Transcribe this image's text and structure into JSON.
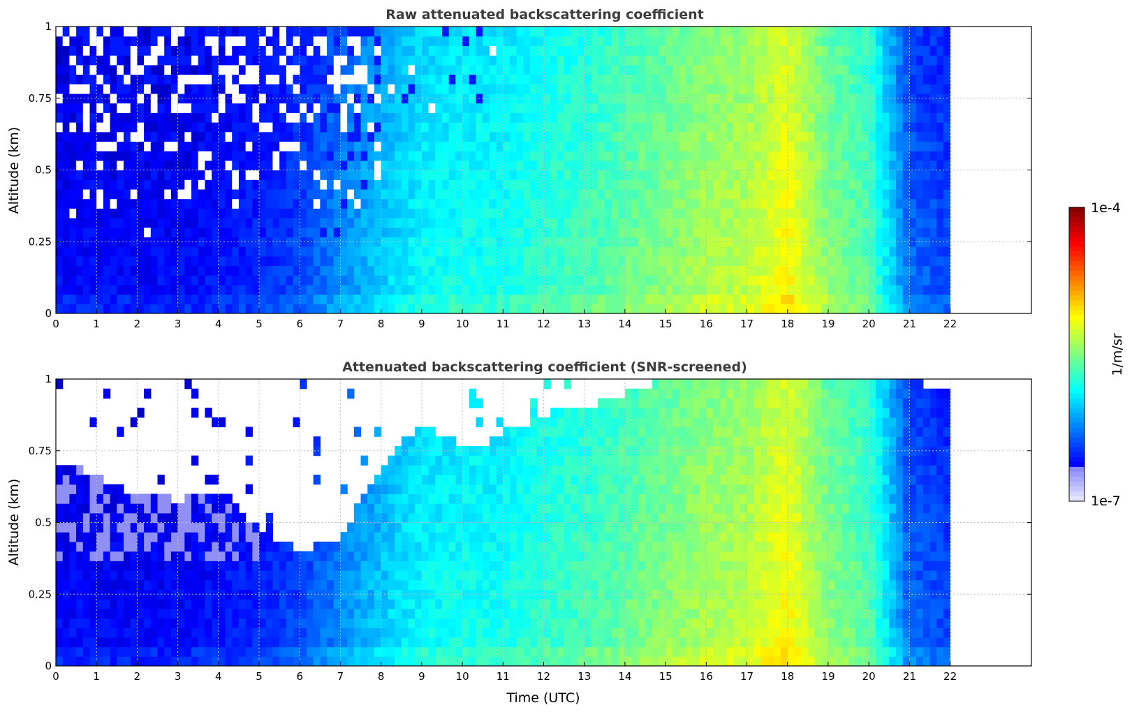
{
  "colors": {
    "jet_low": "#0000ff",
    "jet_high": "#800000",
    "title_color": "#3c3c3c",
    "grid_color": "#bdbdbd"
  },
  "chart_data": [
    {
      "type": "heatmap",
      "title": "Raw attenuated backscattering coefficient",
      "xlabel": "",
      "ylabel": "Altitude (km)",
      "xlim": [
        0,
        24
      ],
      "ylim": [
        0,
        1
      ],
      "x_ticks": [
        "0",
        "1",
        "2",
        "3",
        "4",
        "5",
        "6",
        "7",
        "8",
        "9",
        "10",
        "11",
        "12",
        "13",
        "14",
        "15",
        "16",
        "17",
        "18",
        "19",
        "20",
        "21",
        "22"
      ],
      "y_ticks": [
        "0",
        "0.25",
        "0.5",
        "0.75",
        "1"
      ],
      "grid": true,
      "data_extent_x": [
        0,
        22
      ],
      "time_profile_hours": [
        0,
        1,
        2,
        3,
        4,
        5,
        6,
        7,
        8,
        9,
        10,
        11,
        12,
        13,
        14,
        15,
        16,
        17,
        18,
        19,
        20,
        21,
        22
      ],
      "log10_backscatter_estimate": [
        -6.6,
        -6.6,
        -6.6,
        -6.6,
        -6.55,
        -6.5,
        -6.4,
        -6.2,
        -6.0,
        -5.85,
        -5.8,
        -5.8,
        -5.7,
        -5.65,
        -5.55,
        -5.45,
        -5.35,
        -5.3,
        -5.1,
        -5.45,
        -5.6,
        -6.3,
        -6.4
      ]
    },
    {
      "type": "heatmap",
      "title": "Attenuated backscattering coefficient (SNR-screened)",
      "xlabel": "Time (UTC)",
      "ylabel": "Altitude (km)",
      "xlim": [
        0,
        24
      ],
      "ylim": [
        0,
        1
      ],
      "x_ticks": [
        "0",
        "1",
        "2",
        "3",
        "4",
        "5",
        "6",
        "7",
        "8",
        "9",
        "10",
        "11",
        "12",
        "13",
        "14",
        "15",
        "16",
        "17",
        "18",
        "19",
        "20",
        "21",
        "22"
      ],
      "y_ticks": [
        "0",
        "0.25",
        "0.5",
        "0.75",
        "1"
      ],
      "grid": true,
      "data_extent_x": [
        0,
        22
      ],
      "screen_top_hours": [
        0,
        1,
        2,
        3,
        4,
        5,
        6,
        7,
        8,
        9,
        10,
        11,
        12,
        13,
        14,
        15,
        16,
        17,
        18,
        19,
        20,
        21,
        22
      ],
      "screen_top_km": [
        0.72,
        0.66,
        0.6,
        0.58,
        0.6,
        0.48,
        0.4,
        0.45,
        0.7,
        0.85,
        0.75,
        0.8,
        0.88,
        0.9,
        0.95,
        1.0,
        1.0,
        1.0,
        1.0,
        1.0,
        1.0,
        1.0,
        0.95
      ]
    }
  ],
  "colorbar": {
    "label": "1/m/sr",
    "max_label": "1e-4",
    "min_label": "1e-7",
    "range": [
      1e-07,
      0.0001
    ],
    "scale": "log",
    "colormap": "jet"
  }
}
